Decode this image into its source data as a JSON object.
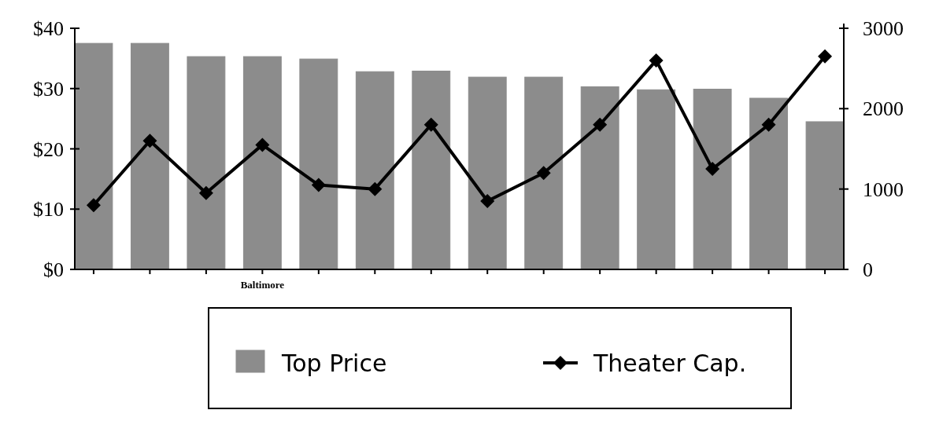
{
  "chart_data": {
    "type": "bar",
    "categories": [
      null,
      null,
      null,
      "Baltimore",
      null,
      null,
      null,
      null,
      null,
      null,
      null,
      null,
      null,
      null
    ],
    "series": [
      {
        "name": "Top Price",
        "color": "#8c8c8c",
        "values": [
          37.5,
          37.5,
          35.3,
          35.3,
          34.9,
          32.8,
          32.9,
          31.9,
          31.9,
          30.3,
          29.8,
          29.9,
          28.4,
          24.5
        ]
      },
      {
        "name": "Theater Cap.",
        "type": "line",
        "axis": "y2",
        "color": "#000000",
        "values": [
          800,
          1600,
          950,
          1550,
          1050,
          1000,
          1800,
          850,
          1200,
          1800,
          2600,
          1250,
          1800,
          2650
        ]
      }
    ],
    "ylim": [
      0,
      40
    ],
    "yticks": [
      {
        "value": 0,
        "label": "$0"
      },
      {
        "value": 10,
        "label": "$10"
      },
      {
        "value": 20,
        "label": "$20"
      },
      {
        "value": 30,
        "label": "$30"
      },
      {
        "value": 40,
        "label": "$40"
      }
    ],
    "y2lim": [
      0,
      3000
    ],
    "y2ticks": [
      0,
      1000,
      2000,
      3000
    ],
    "legend": "bottom",
    "marker": "diamond",
    "line_style": "solid",
    "grid": false
  }
}
